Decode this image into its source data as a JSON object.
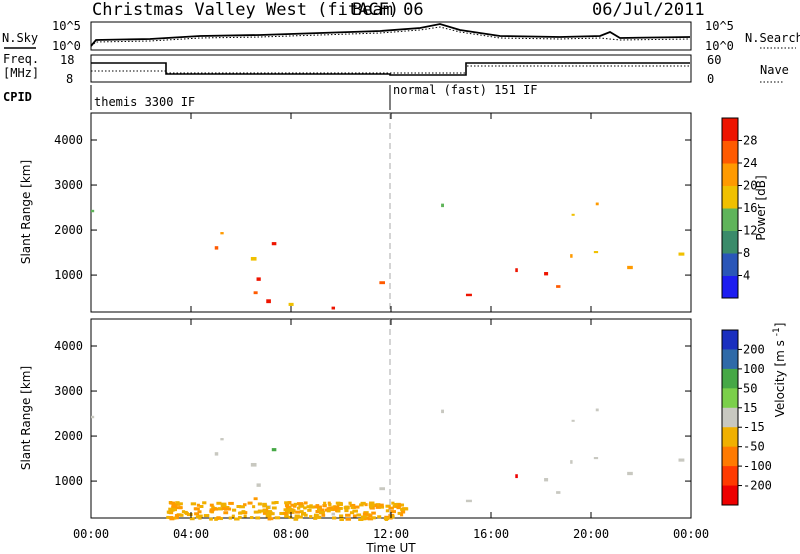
{
  "header": {
    "site": "Christmas Valley West (fitACF)",
    "beam": "Beam 06",
    "date": "06/Jul/2011"
  },
  "strip": {
    "nsky_label": "N.Sky",
    "nsky_ticks": [
      "10^5",
      "10^0"
    ],
    "nsearch_label": "N.Search",
    "nsearch_ticks": [
      "10^5",
      "10^0"
    ],
    "freq_label_1": "Freq.",
    "freq_label_2": "[MHz]",
    "freq_ticks": [
      "18",
      "8"
    ],
    "nave_label": "Nave",
    "nave_ticks": [
      "60",
      "0"
    ],
    "cpid_label": "CPID",
    "cpid_segments": [
      {
        "label": "themis 3300 IF",
        "start_hour": 0
      },
      {
        "label": "normal (fast) 151 IF",
        "start_hour": 12
      }
    ]
  },
  "chart_data": [
    {
      "type": "heatmap",
      "name": "power",
      "ylabel": "Slant Range [km]",
      "xlabel": "Time UT",
      "x_ticks": [
        "00:00",
        "04:00",
        "08:00",
        "12:00",
        "16:00",
        "20:00",
        "00:00"
      ],
      "xlim_hours": [
        0,
        24
      ],
      "y_ticks": [
        1000,
        2000,
        3000,
        4000
      ],
      "ylim_km": [
        180,
        4600
      ],
      "colorbar": {
        "label": "Power [dB]",
        "ticks": [
          "4",
          "8",
          "12",
          "16",
          "20",
          "24",
          "28"
        ],
        "range": [
          0,
          30
        ],
        "colors": [
          "#1d1df0",
          "#2a56b8",
          "#3a8b6a",
          "#5fb45a",
          "#f0c000",
          "#ff9a00",
          "#ff5a00",
          "#ee1400"
        ]
      }
    },
    {
      "type": "heatmap",
      "name": "velocity",
      "ylabel": "Slant Range [km]",
      "xlabel": "Time UT",
      "x_ticks": [
        "00:00",
        "04:00",
        "08:00",
        "12:00",
        "16:00",
        "20:00",
        "00:00"
      ],
      "xlim_hours": [
        0,
        24
      ],
      "y_ticks": [
        1000,
        2000,
        3000,
        4000
      ],
      "ylim_km": [
        180,
        4600
      ],
      "colorbar": {
        "label": "Velocity [m s^-1]",
        "ticks": [
          "200",
          "100",
          "50",
          "15",
          "-15",
          "-50",
          "-100",
          "-200"
        ],
        "colors": [
          "#1a2fbf",
          "#2f6aa8",
          "#46a846",
          "#7bd04a",
          "#c8c8c0",
          "#f0b000",
          "#ff7a00",
          "#ff3a00",
          "#ee0000"
        ]
      }
    }
  ]
}
